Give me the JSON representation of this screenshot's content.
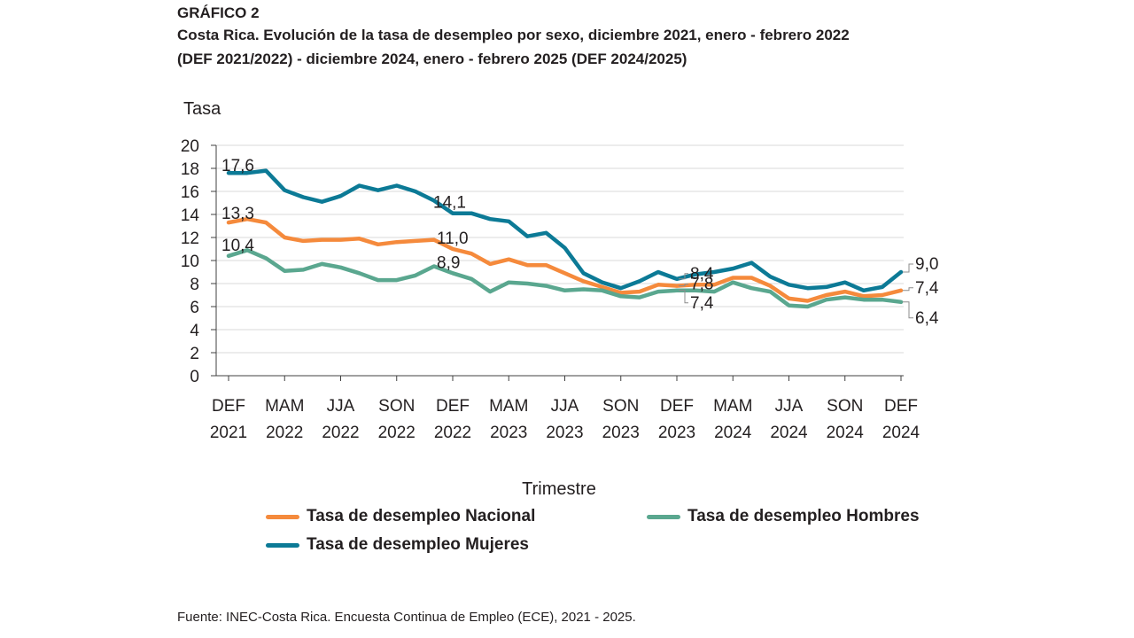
{
  "header": {
    "kicker": "GRÁFICO 2",
    "title": "Costa Rica. Evolución de la tasa de desempleo por sexo, diciembre 2021, enero - febrero 2022\n(DEF 2021/2022) - diciembre 2024, enero - febrero 2025 (DEF 2024/2025)"
  },
  "source": "Fuente: INEC-Costa Rica. Encuesta Continua de Empleo (ECE), 2021 - 2025.",
  "chart_data": {
    "type": "line",
    "ylabel": "Tasa",
    "xlabel": "Trimestre",
    "ylim": [
      0,
      20
    ],
    "yticks": [
      "0",
      "2",
      "4",
      "6",
      "8",
      "10",
      "12",
      "14",
      "16",
      "18",
      "20"
    ],
    "x_tick_labels": [
      [
        "DEF",
        "2021"
      ],
      [
        "MAM",
        "2022"
      ],
      [
        "JJA",
        "2022"
      ],
      [
        "SON",
        "2022"
      ],
      [
        "DEF",
        "2022"
      ],
      [
        "MAM",
        "2023"
      ],
      [
        "JJA",
        "2023"
      ],
      [
        "SON",
        "2023"
      ],
      [
        "DEF",
        "2023"
      ],
      [
        "MAM",
        "2024"
      ],
      [
        "JJA",
        "2024"
      ],
      [
        "SON",
        "2024"
      ],
      [
        "DEF",
        "2024"
      ]
    ],
    "grid": true,
    "legend_position": "bottom",
    "series": [
      {
        "name": "Tasa de desempleo Nacional",
        "color": "#f58a3c",
        "values": [
          13.3,
          13.6,
          13.3,
          12.0,
          11.7,
          11.8,
          11.8,
          11.9,
          11.4,
          11.6,
          11.7,
          11.8,
          11.0,
          10.6,
          9.7,
          10.1,
          9.6,
          9.6,
          8.9,
          8.2,
          7.7,
          7.2,
          7.3,
          7.9,
          7.8,
          7.9,
          7.9,
          8.5,
          8.5,
          7.8,
          6.7,
          6.5,
          7.0,
          7.3,
          6.9,
          7.0,
          7.4
        ]
      },
      {
        "name": "Tasa de desempleo Hombres",
        "color": "#5aa78f",
        "values": [
          10.4,
          10.9,
          10.2,
          9.1,
          9.2,
          9.7,
          9.4,
          8.9,
          8.3,
          8.3,
          8.7,
          9.5,
          8.9,
          8.4,
          7.3,
          8.1,
          8.0,
          7.8,
          7.4,
          7.5,
          7.4,
          6.9,
          6.8,
          7.3,
          7.4,
          7.4,
          7.3,
          8.1,
          7.6,
          7.3,
          6.1,
          6.0,
          6.6,
          6.8,
          6.6,
          6.6,
          6.4
        ]
      },
      {
        "name": "Tasa de desempleo Mujeres",
        "color": "#0c7a96",
        "values": [
          17.6,
          17.6,
          17.8,
          16.1,
          15.5,
          15.1,
          15.6,
          16.5,
          16.1,
          16.5,
          16.0,
          15.2,
          14.1,
          14.1,
          13.6,
          13.4,
          12.1,
          12.4,
          11.1,
          8.9,
          8.1,
          7.6,
          8.2,
          9.0,
          8.4,
          8.8,
          9.0,
          9.3,
          9.8,
          8.6,
          7.9,
          7.6,
          7.7,
          8.1,
          7.4,
          7.7,
          9.0
        ]
      }
    ],
    "data_labels": [
      {
        "text": "17,6",
        "series": 2,
        "index": 0
      },
      {
        "text": "13,3",
        "series": 0,
        "index": 0
      },
      {
        "text": "10,4",
        "series": 1,
        "index": 0
      },
      {
        "text": "14,1",
        "series": 2,
        "index": 12
      },
      {
        "text": "11,0",
        "series": 0,
        "index": 12
      },
      {
        "text": "8,9",
        "series": 1,
        "index": 12
      },
      {
        "text": "8,4",
        "series": 2,
        "index": 24
      },
      {
        "text": "7,8",
        "series": 0,
        "index": 24
      },
      {
        "text": "7,4",
        "series": 1,
        "index": 24
      },
      {
        "text": "9,0",
        "series": 2,
        "index": 36
      },
      {
        "text": "7,4",
        "series": 0,
        "index": 36
      },
      {
        "text": "6,4",
        "series": 1,
        "index": 36
      }
    ]
  }
}
